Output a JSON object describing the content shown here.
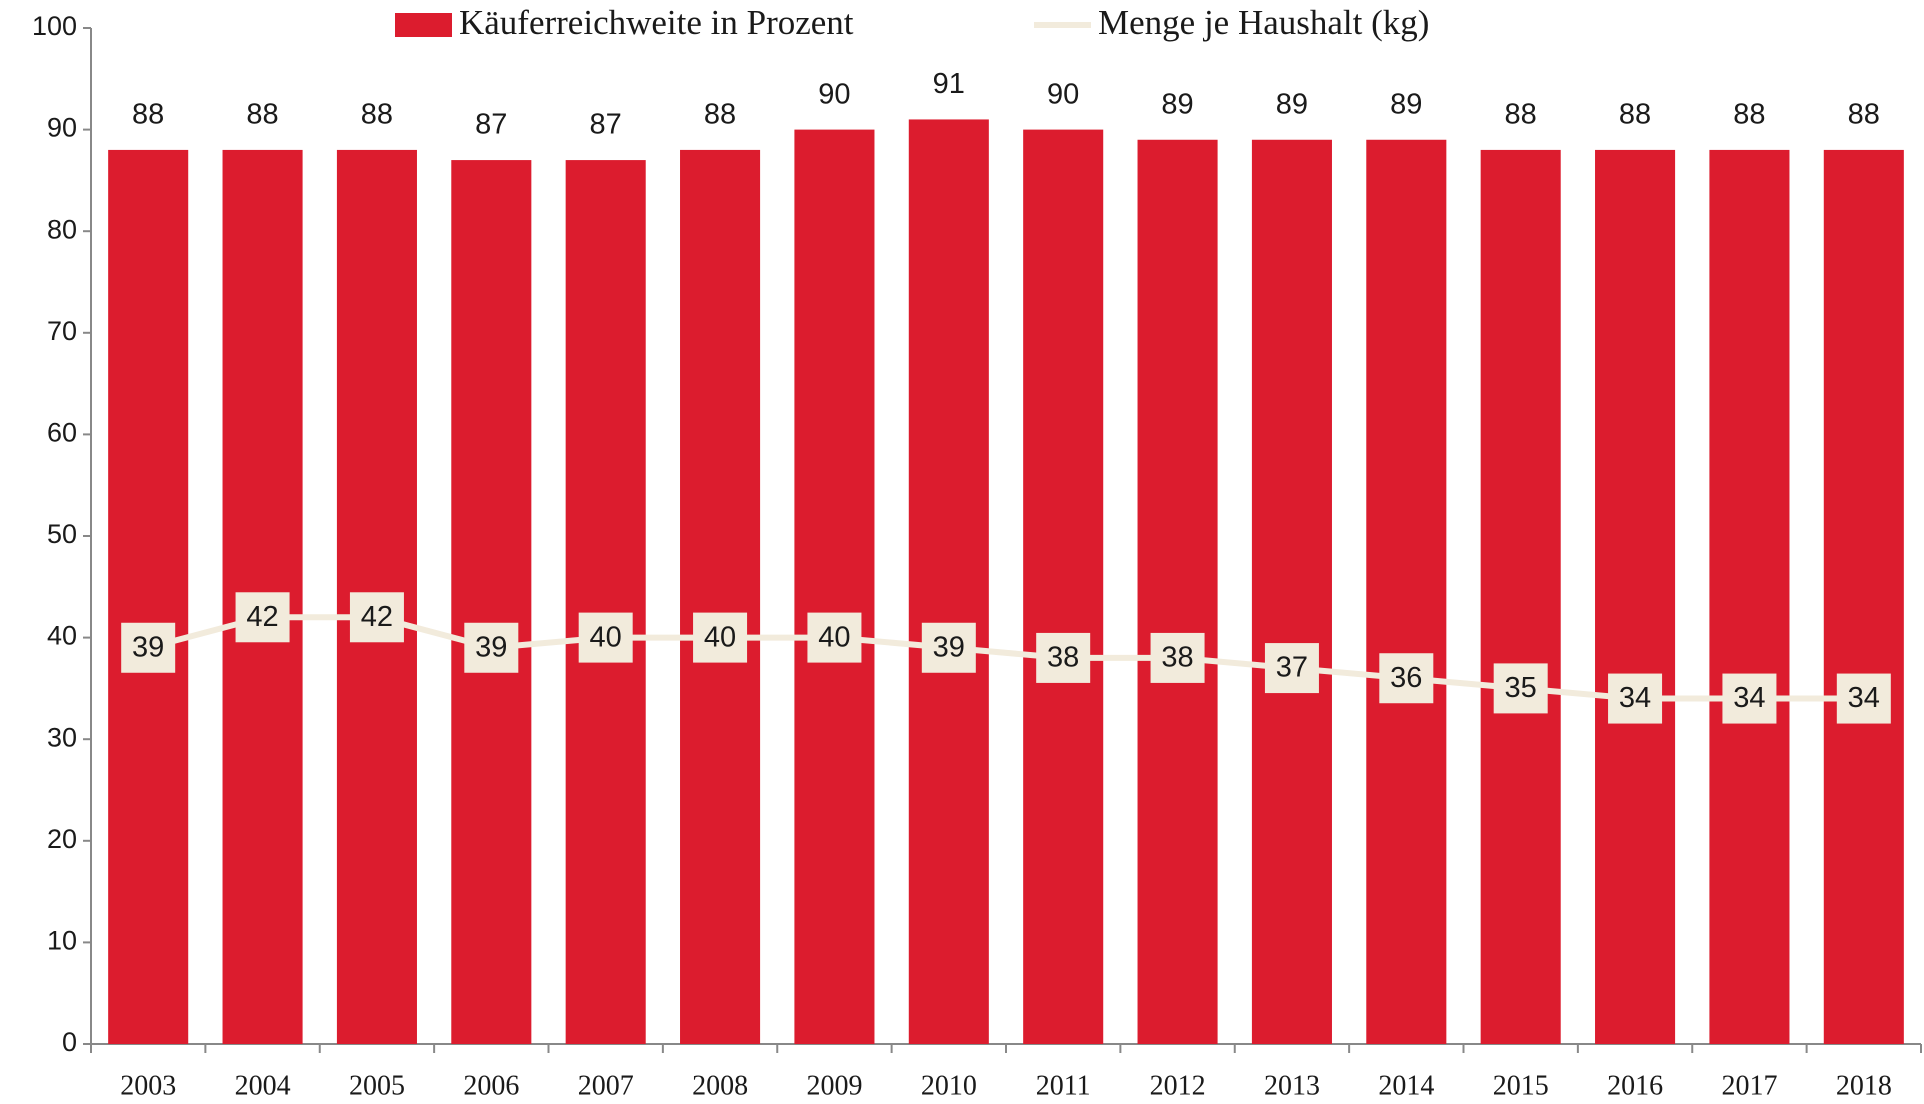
{
  "chart_data": {
    "type": "bar",
    "categories": [
      "2003",
      "2004",
      "2005",
      "2006",
      "2007",
      "2008",
      "2009",
      "2010",
      "2011",
      "2012",
      "2013",
      "2014",
      "2015",
      "2016",
      "2017",
      "2018"
    ],
    "series": [
      {
        "name": "Käuferreichweite in Prozent",
        "type": "bar",
        "color": "#dc1c2e",
        "values": [
          88,
          88,
          88,
          87,
          87,
          88,
          90,
          91,
          90,
          89,
          89,
          89,
          88,
          88,
          88,
          88
        ]
      },
      {
        "name": "Menge je Haushalt (kg)",
        "type": "line",
        "color": "#f2ebdc",
        "values": [
          39,
          42,
          42,
          39,
          40,
          40,
          40,
          39,
          38,
          38,
          37,
          36,
          35,
          34,
          34,
          34
        ]
      }
    ],
    "ylim": [
      0,
      100
    ],
    "yticks": [
      0,
      10,
      20,
      30,
      40,
      50,
      60,
      70,
      80,
      90,
      100
    ],
    "grid": false,
    "legend": "top"
  }
}
